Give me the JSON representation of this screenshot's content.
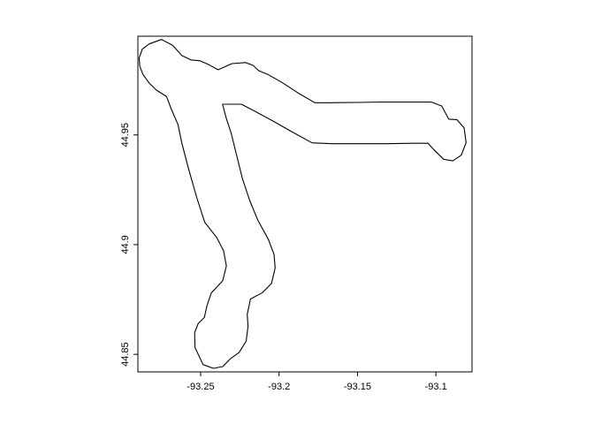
{
  "chart_data": {
    "type": "line",
    "title": "",
    "xlabel": "",
    "ylabel": "",
    "xlim": [
      -93.29,
      -93.077
    ],
    "ylim": [
      44.842,
      44.995
    ],
    "grid": false,
    "legend": "none",
    "colors": {
      "line": "#000000",
      "frame": "#000000",
      "background": "#ffffff"
    },
    "x_ticks": [
      {
        "value": -93.25,
        "label": "-93.25"
      },
      {
        "value": -93.2,
        "label": "-93.2"
      },
      {
        "value": -93.15,
        "label": "-93.15"
      },
      {
        "value": -93.1,
        "label": "-93.1"
      }
    ],
    "y_ticks": [
      {
        "value": 44.85,
        "label": "44.85"
      },
      {
        "value": 44.9,
        "label": "44.9"
      },
      {
        "value": 44.95,
        "label": "44.95"
      }
    ],
    "series": [
      {
        "points": [
          [
            -93.2828,
            44.9915
          ],
          [
            -93.2872,
            44.9891
          ],
          [
            -93.2892,
            44.9851
          ],
          [
            -93.2888,
            44.9814
          ],
          [
            -93.2868,
            44.9776
          ],
          [
            -93.2826,
            44.9735
          ],
          [
            -93.2781,
            44.9704
          ],
          [
            -93.2718,
            44.9676
          ],
          [
            -93.2689,
            44.9622
          ],
          [
            -93.2645,
            44.9548
          ],
          [
            -93.2619,
            44.946
          ],
          [
            -93.2578,
            44.9349
          ],
          [
            -93.2524,
            44.9213
          ],
          [
            -93.2474,
            44.9102
          ],
          [
            -93.2398,
            44.9033
          ],
          [
            -93.2354,
            44.8972
          ],
          [
            -93.2336,
            44.8903
          ],
          [
            -93.2359,
            44.8836
          ],
          [
            -93.2432,
            44.878
          ],
          [
            -93.246,
            44.8721
          ],
          [
            -93.2476,
            44.8668
          ],
          [
            -93.2515,
            44.8641
          ],
          [
            -93.2538,
            44.8599
          ],
          [
            -93.2536,
            44.8531
          ],
          [
            -93.2484,
            44.8453
          ],
          [
            -93.2418,
            44.8436
          ],
          [
            -93.2359,
            44.8444
          ],
          [
            -93.231,
            44.848
          ],
          [
            -93.2255,
            44.8508
          ],
          [
            -93.221,
            44.856
          ],
          [
            -93.2198,
            44.8628
          ],
          [
            -93.2203,
            44.8683
          ],
          [
            -93.2182,
            44.8752
          ],
          [
            -93.2106,
            44.8781
          ],
          [
            -93.2048,
            44.8823
          ],
          [
            -93.2025,
            44.8894
          ],
          [
            -93.2032,
            44.8956
          ],
          [
            -93.2068,
            44.9023
          ],
          [
            -93.2136,
            44.9112
          ],
          [
            -93.2186,
            44.9199
          ],
          [
            -93.2233,
            44.9299
          ],
          [
            -93.2271,
            44.9409
          ],
          [
            -93.2306,
            44.951
          ],
          [
            -93.2338,
            44.958
          ],
          [
            -93.236,
            44.964
          ],
          [
            -93.2305,
            44.964
          ],
          [
            -93.224,
            44.964
          ],
          [
            -93.216,
            44.961
          ],
          [
            -93.2038,
            44.9563
          ],
          [
            -93.192,
            44.9515
          ],
          [
            -93.179,
            44.9464
          ],
          [
            -93.166,
            44.946
          ],
          [
            -93.149,
            44.946
          ],
          [
            -93.132,
            44.946
          ],
          [
            -93.115,
            44.9462
          ],
          [
            -93.105,
            44.9462
          ],
          [
            -93.1009,
            44.943
          ],
          [
            -93.0951,
            44.9389
          ],
          [
            -93.0892,
            44.9382
          ],
          [
            -93.0838,
            44.9408
          ],
          [
            -93.0808,
            44.9465
          ],
          [
            -93.082,
            44.9532
          ],
          [
            -93.0867,
            44.957
          ],
          [
            -93.0918,
            44.9572
          ],
          [
            -93.0963,
            44.9632
          ],
          [
            -93.103,
            44.965
          ],
          [
            -93.1168,
            44.965
          ],
          [
            -93.134,
            44.965
          ],
          [
            -93.151,
            44.9648
          ],
          [
            -93.168,
            44.9647
          ],
          [
            -93.1772,
            44.9647
          ],
          [
            -93.188,
            44.9692
          ],
          [
            -93.1978,
            44.9738
          ],
          [
            -93.2072,
            44.9776
          ],
          [
            -93.213,
            44.9793
          ],
          [
            -93.2166,
            44.9817
          ],
          [
            -93.2214,
            44.983
          ],
          [
            -93.23,
            44.9825
          ],
          [
            -93.2389,
            44.9797
          ],
          [
            -93.2447,
            44.982
          ],
          [
            -93.2505,
            44.9838
          ],
          [
            -93.2562,
            44.9842
          ],
          [
            -93.262,
            44.9862
          ],
          [
            -93.2678,
            44.9908
          ],
          [
            -93.2749,
            44.9935
          ],
          [
            -93.2828,
            44.9915
          ]
        ]
      }
    ]
  }
}
